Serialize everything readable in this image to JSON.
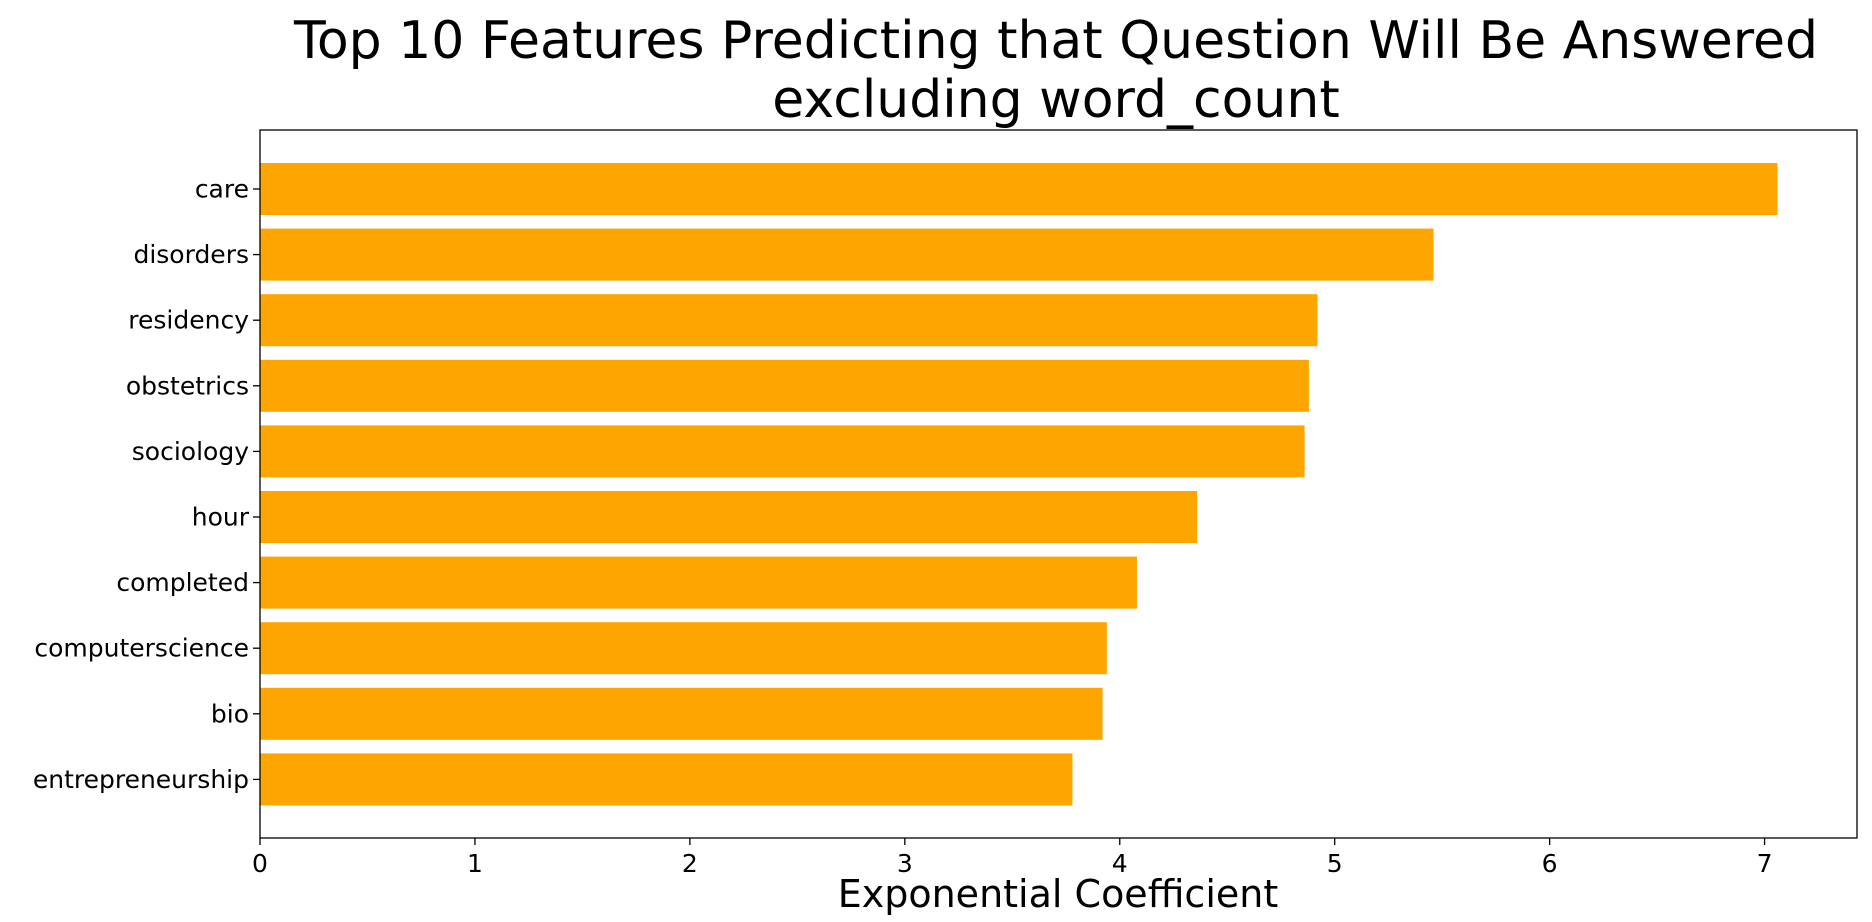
{
  "chart_data": {
    "type": "bar",
    "orientation": "horizontal",
    "title_lines": [
      "Top 10 Features Predicting that Question Will Be Answered",
      "excluding word_count"
    ],
    "xlabel": "Exponential Coefficient",
    "ylabel": "",
    "categories": [
      "care",
      "disorders",
      "residency",
      "obstetrics",
      "sociology",
      "hour",
      "completed",
      "computerscience",
      "bio",
      "entrepreneurship"
    ],
    "values": [
      7.06,
      5.46,
      4.92,
      4.88,
      4.86,
      4.36,
      4.08,
      3.94,
      3.92,
      3.78
    ],
    "xlim": [
      0,
      7.43
    ],
    "xticks": [
      0,
      1,
      2,
      3,
      4,
      5,
      6,
      7
    ],
    "bar_color": "#ffa500",
    "grid": false,
    "legend": "none"
  }
}
